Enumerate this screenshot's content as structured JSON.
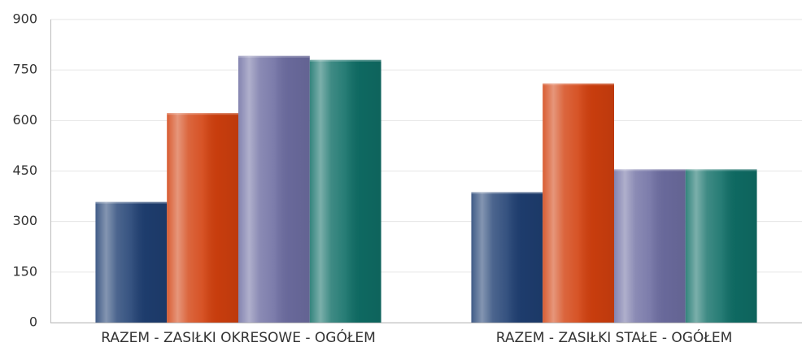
{
  "chart_data": {
    "type": "bar",
    "categories": [
      "RAZEM -  ZASIŁKI OKRESOWE - OGÓŁEM",
      "RAZEM -  ZASIŁKI STAŁE - OGÓŁEM"
    ],
    "series": [
      {
        "color": "#1f3f72",
        "values": [
          358,
          387
        ]
      },
      {
        "color": "#d2400e",
        "values": [
          622,
          710
        ]
      },
      {
        "color": "#6e6ea2",
        "values": [
          792,
          455
        ]
      },
      {
        "color": "#0f6e66",
        "values": [
          780,
          455
        ]
      }
    ],
    "ylim": [
      0,
      900
    ],
    "yticks": [
      0,
      150,
      300,
      450,
      600,
      750,
      900
    ],
    "grid": true
  }
}
